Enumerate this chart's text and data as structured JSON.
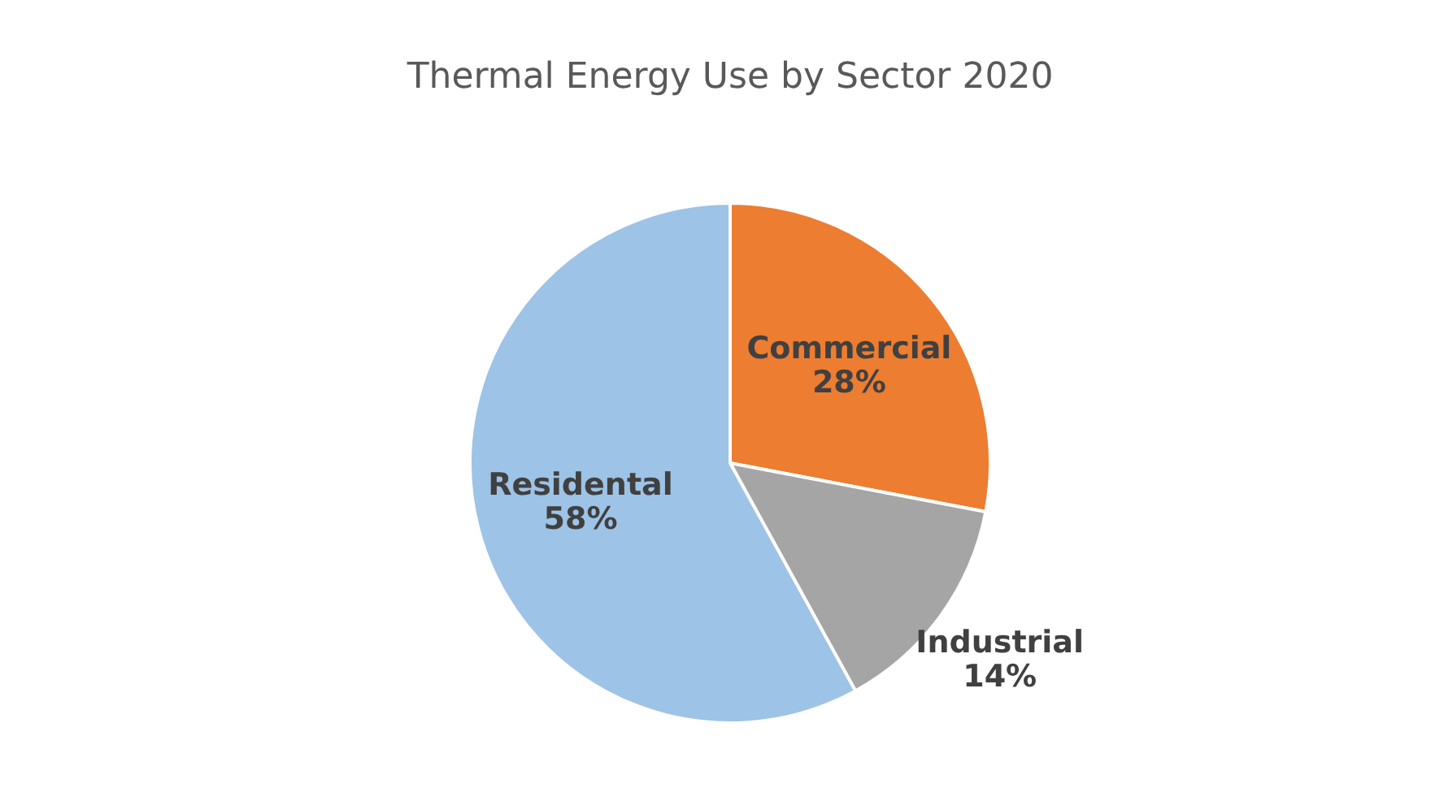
{
  "chart_data": {
    "type": "pie",
    "title": "Thermal Energy Use by Sector 2020",
    "categories": [
      "Commercial",
      "Industrial",
      "Residental"
    ],
    "values": [
      28,
      14,
      58
    ],
    "colors": [
      "#ed7d31",
      "#a5a5a5",
      "#9dc3e6"
    ],
    "value_labels": [
      "28%",
      "14%",
      "58%"
    ]
  }
}
